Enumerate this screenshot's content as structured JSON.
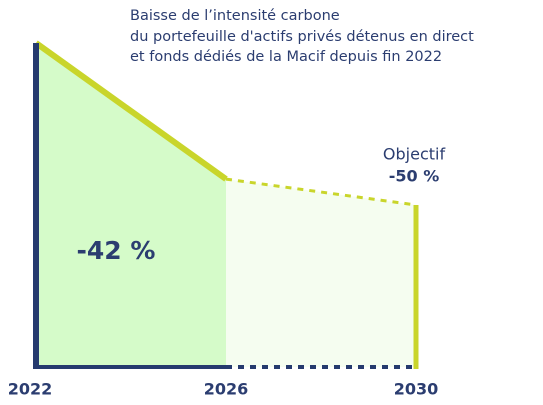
{
  "chart_data": {
    "type": "area",
    "title": [
      "Baisse de l’intensité carbone",
      "du portefeuille d'actifs privés détenus en direct",
      "et fonds dédiés de la Macif depuis fin 2022"
    ],
    "x": [
      2022,
      2026,
      2030
    ],
    "values": [
      0,
      -42,
      -50
    ],
    "value_labels": [
      null,
      "-42 %",
      "-50 %"
    ],
    "annotation": "Objectif",
    "xlim": [
      2022,
      2030
    ],
    "xticks": [
      2022,
      2026,
      2030
    ],
    "ylim": [
      -100,
      0
    ],
    "color": "#c9d52b",
    "axis_color": "#253a6e",
    "fill_colors": [
      "#d5fbc9",
      "#f5fdf0"
    ]
  }
}
